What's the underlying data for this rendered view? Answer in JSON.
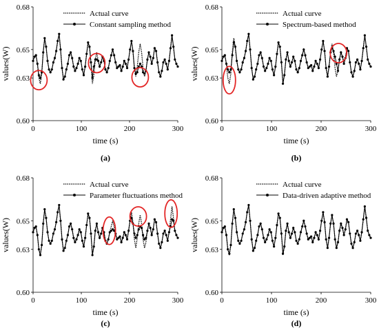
{
  "panels": [
    {
      "caption": "(a)",
      "chart_data": {
        "type": "line",
        "xlabel": "time (s)",
        "ylabel": "values(W)",
        "xlim": [
          0,
          300
        ],
        "ylim": [
          0.6,
          0.68
        ],
        "xticks": [
          "0",
          "100",
          "200",
          "300"
        ],
        "yticks": [
          "0.60",
          "0.63",
          "0.65",
          "0.68"
        ],
        "legend_position": "top-right",
        "grid": false,
        "series": [
          {
            "name": "Actual curve",
            "style": "dotted"
          },
          {
            "name": "Constant sampling method",
            "style": "solid-markers"
          }
        ],
        "annotations": [
          {
            "type": "circle",
            "x": 12,
            "y": 0.6285
          },
          {
            "type": "circle",
            "x": 132,
            "y": 0.6405
          },
          {
            "type": "circle",
            "x": 222,
            "y": 0.6305
          }
        ]
      }
    },
    {
      "caption": "(b)",
      "chart_data": {
        "type": "line",
        "xlabel": "time (s)",
        "ylabel": "values(W)",
        "xlim": [
          0,
          300
        ],
        "ylim": [
          0.6,
          0.68
        ],
        "xticks": [
          "0",
          "100",
          "200",
          "300"
        ],
        "yticks": [
          "0.60",
          "0.63",
          "0.65",
          "0.68"
        ],
        "legend_position": "top-right",
        "grid": false,
        "series": [
          {
            "name": "Actual curve",
            "style": "dotted"
          },
          {
            "name": "Spectrum-based method",
            "style": "solid-markers"
          }
        ],
        "annotations": [
          {
            "type": "ellipse",
            "x": 15,
            "y": 0.6285
          },
          {
            "type": "circle",
            "x": 235,
            "y": 0.6475
          }
        ]
      }
    },
    {
      "caption": "(c)",
      "chart_data": {
        "type": "line",
        "xlabel": "time (s)",
        "ylabel": "values(W)",
        "xlim": [
          0,
          300
        ],
        "ylim": [
          0.6,
          0.68
        ],
        "xticks": [
          "0",
          "100",
          "200",
          "300"
        ],
        "yticks": [
          "0.60",
          "0.63",
          "0.65",
          "0.68"
        ],
        "legend_position": "top-right",
        "grid": false,
        "series": [
          {
            "name": "Actual curve",
            "style": "dotted"
          },
          {
            "name": "Parameter fluctuations method",
            "style": "solid-markers"
          }
        ],
        "annotations": [
          {
            "type": "ellipse",
            "x": 158,
            "y": 0.643
          },
          {
            "type": "circle",
            "x": 218,
            "y": 0.653
          },
          {
            "type": "ellipse",
            "x": 286,
            "y": 0.655
          }
        ]
      }
    },
    {
      "caption": "(d)",
      "chart_data": {
        "type": "line",
        "xlabel": "time (s)",
        "ylabel": "values(W)",
        "xlim": [
          0,
          300
        ],
        "ylim": [
          0.6,
          0.68
        ],
        "xticks": [
          "0",
          "100",
          "200",
          "300"
        ],
        "yticks": [
          "0.60",
          "0.63",
          "0.65",
          "0.68"
        ],
        "legend_position": "top-right",
        "grid": false,
        "series": [
          {
            "name": "Actual curve",
            "style": "dotted"
          },
          {
            "name": "Data-driven adaptive method",
            "style": "solid-markers"
          }
        ],
        "annotations": []
      }
    }
  ],
  "actual_curve": {
    "x": [
      0,
      3,
      6,
      9,
      12,
      15,
      18,
      21,
      24,
      27,
      30,
      33,
      36,
      39,
      42,
      45,
      48,
      51,
      54,
      57,
      60,
      63,
      66,
      69,
      72,
      75,
      78,
      81,
      84,
      87,
      90,
      93,
      96,
      99,
      102,
      105,
      108,
      111,
      114,
      117,
      120,
      123,
      126,
      129,
      132,
      135,
      138,
      141,
      144,
      147,
      150,
      153,
      156,
      159,
      162,
      165,
      168,
      171,
      174,
      177,
      180,
      183,
      186,
      189,
      192,
      195,
      198,
      201,
      204,
      207,
      210,
      213,
      216,
      219,
      222,
      225,
      228,
      231,
      234,
      237,
      240,
      243,
      246,
      249,
      252,
      255,
      258,
      261,
      264,
      267,
      270,
      273,
      276,
      279,
      282,
      285,
      288,
      291,
      294,
      297,
      300
    ],
    "y": [
      0.642,
      0.645,
      0.646,
      0.64,
      0.63,
      0.626,
      0.633,
      0.648,
      0.658,
      0.652,
      0.642,
      0.636,
      0.634,
      0.636,
      0.641,
      0.644,
      0.649,
      0.656,
      0.661,
      0.65,
      0.637,
      0.629,
      0.631,
      0.636,
      0.64,
      0.646,
      0.648,
      0.644,
      0.638,
      0.635,
      0.637,
      0.64,
      0.644,
      0.642,
      0.636,
      0.632,
      0.638,
      0.647,
      0.655,
      0.652,
      0.641,
      0.626,
      0.632,
      0.643,
      0.648,
      0.642,
      0.638,
      0.641,
      0.645,
      0.642,
      0.636,
      0.634,
      0.637,
      0.642,
      0.646,
      0.65,
      0.646,
      0.641,
      0.637,
      0.638,
      0.639,
      0.635,
      0.638,
      0.642,
      0.64,
      0.637,
      0.643,
      0.65,
      0.656,
      0.649,
      0.637,
      0.631,
      0.638,
      0.648,
      0.654,
      0.648,
      0.637,
      0.631,
      0.635,
      0.643,
      0.648,
      0.645,
      0.64,
      0.644,
      0.651,
      0.649,
      0.641,
      0.634,
      0.631,
      0.635,
      0.641,
      0.643,
      0.64,
      0.636,
      0.642,
      0.651,
      0.66,
      0.652,
      0.643,
      0.64,
      0.638
    ]
  },
  "method_curves": [
    {
      "x": [
        0,
        3,
        6,
        9,
        12,
        15,
        18,
        21,
        24,
        27,
        30,
        33,
        36,
        39,
        42,
        45,
        48,
        51,
        54,
        57,
        60,
        63,
        66,
        69,
        72,
        75,
        78,
        81,
        84,
        87,
        90,
        93,
        96,
        99,
        102,
        105,
        108,
        111,
        114,
        117,
        120,
        123,
        126,
        129,
        132,
        135,
        138,
        141,
        144,
        147,
        150,
        153,
        156,
        159,
        162,
        165,
        168,
        171,
        174,
        177,
        180,
        183,
        186,
        189,
        192,
        195,
        198,
        201,
        204,
        207,
        210,
        213,
        216,
        219,
        222,
        225,
        228,
        231,
        234,
        237,
        240,
        243,
        246,
        249,
        252,
        255,
        258,
        261,
        264,
        267,
        270,
        273,
        276,
        279,
        282,
        285,
        288,
        291,
        294,
        297,
        300
      ],
      "y": [
        0.642,
        0.645,
        0.646,
        0.64,
        0.632,
        0.63,
        0.634,
        0.648,
        0.658,
        0.652,
        0.642,
        0.636,
        0.634,
        0.636,
        0.641,
        0.644,
        0.649,
        0.656,
        0.661,
        0.65,
        0.637,
        0.629,
        0.631,
        0.636,
        0.64,
        0.646,
        0.648,
        0.644,
        0.638,
        0.635,
        0.637,
        0.64,
        0.644,
        0.642,
        0.636,
        0.632,
        0.638,
        0.647,
        0.655,
        0.652,
        0.641,
        0.63,
        0.638,
        0.643,
        0.643,
        0.642,
        0.638,
        0.641,
        0.645,
        0.642,
        0.636,
        0.634,
        0.637,
        0.642,
        0.646,
        0.65,
        0.646,
        0.641,
        0.637,
        0.638,
        0.639,
        0.635,
        0.638,
        0.642,
        0.64,
        0.637,
        0.643,
        0.65,
        0.656,
        0.649,
        0.637,
        0.633,
        0.634,
        0.638,
        0.64,
        0.638,
        0.634,
        0.633,
        0.635,
        0.643,
        0.648,
        0.645,
        0.64,
        0.644,
        0.651,
        0.649,
        0.641,
        0.634,
        0.631,
        0.635,
        0.641,
        0.643,
        0.64,
        0.636,
        0.642,
        0.651,
        0.66,
        0.652,
        0.643,
        0.64,
        0.638
      ]
    },
    {
      "x": [
        0,
        3,
        6,
        9,
        12,
        15,
        18,
        21,
        24,
        27,
        30,
        33,
        36,
        39,
        42,
        45,
        48,
        51,
        54,
        57,
        60,
        63,
        66,
        69,
        72,
        75,
        78,
        81,
        84,
        87,
        90,
        93,
        96,
        99,
        102,
        105,
        108,
        111,
        114,
        117,
        120,
        123,
        126,
        129,
        132,
        135,
        138,
        141,
        144,
        147,
        150,
        153,
        156,
        159,
        162,
        165,
        168,
        171,
        174,
        177,
        180,
        183,
        186,
        189,
        192,
        195,
        198,
        201,
        204,
        207,
        210,
        213,
        216,
        219,
        222,
        225,
        228,
        231,
        234,
        237,
        240,
        243,
        246,
        249,
        252,
        255,
        258,
        261,
        264,
        267,
        270,
        273,
        276,
        279,
        282,
        285,
        288,
        291,
        294,
        297,
        300
      ],
      "y": [
        0.642,
        0.645,
        0.646,
        0.64,
        0.636,
        0.634,
        0.636,
        0.646,
        0.655,
        0.652,
        0.642,
        0.636,
        0.634,
        0.636,
        0.641,
        0.644,
        0.649,
        0.656,
        0.661,
        0.65,
        0.637,
        0.629,
        0.631,
        0.636,
        0.64,
        0.646,
        0.648,
        0.644,
        0.638,
        0.635,
        0.637,
        0.64,
        0.644,
        0.642,
        0.636,
        0.632,
        0.638,
        0.647,
        0.655,
        0.652,
        0.641,
        0.626,
        0.632,
        0.643,
        0.648,
        0.642,
        0.638,
        0.641,
        0.645,
        0.642,
        0.636,
        0.634,
        0.637,
        0.642,
        0.646,
        0.65,
        0.646,
        0.641,
        0.637,
        0.638,
        0.639,
        0.635,
        0.638,
        0.642,
        0.64,
        0.637,
        0.643,
        0.65,
        0.656,
        0.649,
        0.637,
        0.631,
        0.638,
        0.648,
        0.651,
        0.649,
        0.645,
        0.64,
        0.635,
        0.643,
        0.648,
        0.645,
        0.64,
        0.644,
        0.651,
        0.649,
        0.641,
        0.634,
        0.631,
        0.635,
        0.641,
        0.643,
        0.64,
        0.636,
        0.642,
        0.651,
        0.66,
        0.652,
        0.643,
        0.64,
        0.638
      ]
    },
    {
      "x": [
        0,
        3,
        6,
        9,
        12,
        15,
        18,
        21,
        24,
        27,
        30,
        33,
        36,
        39,
        42,
        45,
        48,
        51,
        54,
        57,
        60,
        63,
        66,
        69,
        72,
        75,
        78,
        81,
        84,
        87,
        90,
        93,
        96,
        99,
        102,
        105,
        108,
        111,
        114,
        117,
        120,
        123,
        126,
        129,
        132,
        135,
        138,
        141,
        144,
        147,
        150,
        153,
        156,
        159,
        162,
        165,
        168,
        171,
        174,
        177,
        180,
        183,
        186,
        189,
        192,
        195,
        198,
        201,
        204,
        207,
        210,
        213,
        216,
        219,
        222,
        225,
        228,
        231,
        234,
        237,
        240,
        243,
        246,
        249,
        252,
        255,
        258,
        261,
        264,
        267,
        270,
        273,
        276,
        279,
        282,
        285,
        288,
        291,
        294,
        297,
        300
      ],
      "y": [
        0.642,
        0.645,
        0.646,
        0.64,
        0.63,
        0.626,
        0.633,
        0.648,
        0.658,
        0.652,
        0.642,
        0.636,
        0.634,
        0.636,
        0.641,
        0.644,
        0.649,
        0.656,
        0.661,
        0.65,
        0.637,
        0.629,
        0.631,
        0.636,
        0.64,
        0.646,
        0.648,
        0.644,
        0.638,
        0.635,
        0.637,
        0.64,
        0.644,
        0.642,
        0.636,
        0.632,
        0.638,
        0.647,
        0.655,
        0.652,
        0.641,
        0.626,
        0.632,
        0.643,
        0.648,
        0.642,
        0.638,
        0.641,
        0.645,
        0.642,
        0.636,
        0.634,
        0.637,
        0.642,
        0.643,
        0.644,
        0.643,
        0.641,
        0.637,
        0.638,
        0.639,
        0.635,
        0.638,
        0.642,
        0.64,
        0.637,
        0.643,
        0.65,
        0.652,
        0.648,
        0.641,
        0.638,
        0.64,
        0.644,
        0.646,
        0.645,
        0.64,
        0.637,
        0.638,
        0.643,
        0.648,
        0.645,
        0.64,
        0.644,
        0.651,
        0.649,
        0.641,
        0.634,
        0.631,
        0.635,
        0.641,
        0.643,
        0.64,
        0.636,
        0.642,
        0.646,
        0.651,
        0.65,
        0.643,
        0.64,
        0.638
      ]
    },
    {
      "x": [
        0,
        3,
        6,
        9,
        12,
        15,
        18,
        21,
        24,
        27,
        30,
        33,
        36,
        39,
        42,
        45,
        48,
        51,
        54,
        57,
        60,
        63,
        66,
        69,
        72,
        75,
        78,
        81,
        84,
        87,
        90,
        93,
        96,
        99,
        102,
        105,
        108,
        111,
        114,
        117,
        120,
        123,
        126,
        129,
        132,
        135,
        138,
        141,
        144,
        147,
        150,
        153,
        156,
        159,
        162,
        165,
        168,
        171,
        174,
        177,
        180,
        183,
        186,
        189,
        192,
        195,
        198,
        201,
        204,
        207,
        210,
        213,
        216,
        219,
        222,
        225,
        228,
        231,
        234,
        237,
        240,
        243,
        246,
        249,
        252,
        255,
        258,
        261,
        264,
        267,
        270,
        273,
        276,
        279,
        282,
        285,
        288,
        291,
        294,
        297,
        300
      ],
      "y": [
        0.642,
        0.645,
        0.646,
        0.64,
        0.63,
        0.627,
        0.633,
        0.648,
        0.658,
        0.652,
        0.642,
        0.636,
        0.634,
        0.636,
        0.641,
        0.644,
        0.649,
        0.656,
        0.661,
        0.65,
        0.637,
        0.629,
        0.631,
        0.636,
        0.64,
        0.646,
        0.648,
        0.644,
        0.638,
        0.635,
        0.637,
        0.64,
        0.644,
        0.642,
        0.636,
        0.632,
        0.638,
        0.647,
        0.655,
        0.652,
        0.641,
        0.627,
        0.632,
        0.643,
        0.648,
        0.642,
        0.638,
        0.641,
        0.645,
        0.642,
        0.636,
        0.634,
        0.637,
        0.642,
        0.646,
        0.65,
        0.646,
        0.641,
        0.637,
        0.638,
        0.639,
        0.635,
        0.638,
        0.642,
        0.64,
        0.637,
        0.643,
        0.65,
        0.656,
        0.649,
        0.637,
        0.631,
        0.638,
        0.648,
        0.654,
        0.648,
        0.637,
        0.631,
        0.635,
        0.643,
        0.648,
        0.645,
        0.64,
        0.644,
        0.651,
        0.649,
        0.641,
        0.634,
        0.631,
        0.635,
        0.641,
        0.643,
        0.64,
        0.636,
        0.642,
        0.651,
        0.66,
        0.652,
        0.643,
        0.64,
        0.638
      ]
    }
  ],
  "colors": {
    "line": "#000000",
    "marker": "#000000",
    "highlight": "#e32626"
  }
}
